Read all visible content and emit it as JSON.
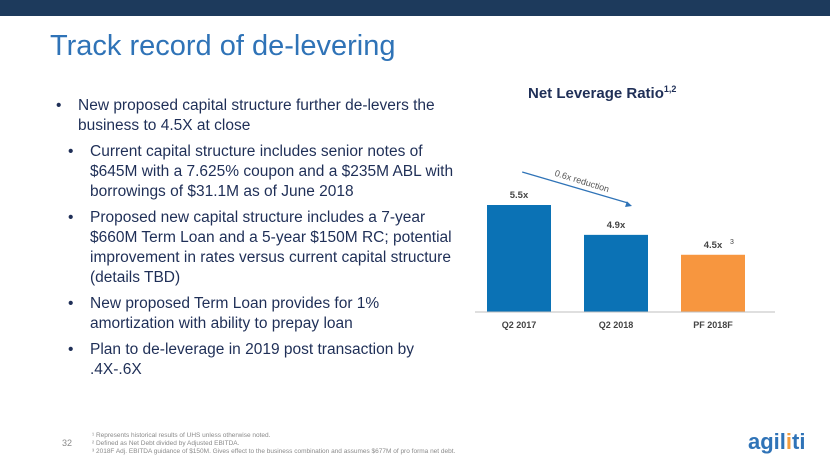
{
  "header": {
    "title": "Track record of de-levering"
  },
  "bullets": {
    "b1": "New proposed capital structure further de-levers the business to 4.5X at close",
    "b2": "Current capital structure includes senior notes of $645M with a 7.625% coupon and a $235M ABL with borrowings of $31.1M as of June 2018",
    "b3": "Proposed new capital structure includes a 7-year $660M Term Loan and a 5-year $150M RC;  potential improvement in rates versus current capital structure (details TBD)",
    "b4": "New proposed Term Loan provides for 1% amortization with ability to prepay loan",
    "b5": "Plan to de-leverage in 2019 post transaction by .4X-.6X"
  },
  "chart_data": {
    "type": "bar",
    "title": "Net Leverage Ratio",
    "title_superscript": "1,2",
    "categories": [
      "Q2 2017",
      "Q2 2018",
      "PF 2018F"
    ],
    "values": [
      5.5,
      4.9,
      4.5
    ],
    "data_labels": [
      "5.5x",
      "4.9x",
      "4.5x"
    ],
    "data_label_superscripts": [
      "",
      "",
      "3"
    ],
    "colors": [
      "#0b72b5",
      "#0b72b5",
      "#f7963f"
    ],
    "annotation": "0.6x reduction",
    "ylim": [
      3.35,
      5.5
    ],
    "grid": false
  },
  "footer": {
    "page_number": "32",
    "footnotes": [
      "¹ Represents historical results of UHS unless otherwise noted.",
      "² Defined as Net Debt divided by Adjusted EBITDA.",
      "³ 2018F Adj. EBITDA guidance of $150M. Gives effect to the business combination and assumes $677M of pro forma net debt."
    ],
    "logo_main": "agil",
    "logo_accent": "i",
    "logo_end": "ti"
  },
  "colors": {
    "topbar": "#1d3a5c",
    "title": "#2f73b7",
    "text": "#1f2f57"
  }
}
